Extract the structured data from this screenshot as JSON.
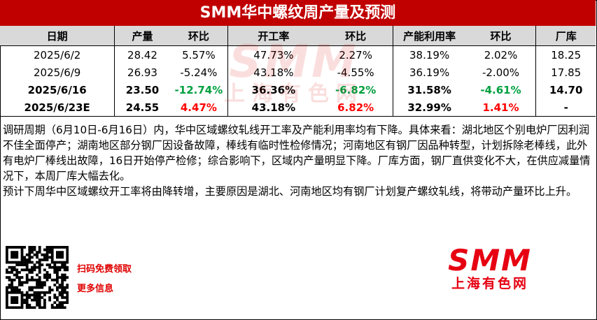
{
  "header": {
    "title": "SMM华中螺纹周产量及预测"
  },
  "table": {
    "headers": [
      "日期",
      "产量",
      "环比",
      "开工率",
      "环比",
      "产能利用率",
      "环比",
      "厂库"
    ],
    "rows": [
      {
        "cells": [
          "2025/6/2",
          "28.42",
          "5.57%",
          "47.73%",
          "2.27%",
          "38.19%",
          "2.02%",
          "18.25"
        ],
        "bold": false
      },
      {
        "cells": [
          "2025/6/9",
          "26.93",
          "-5.24%",
          "43.18%",
          "-4.55%",
          "36.19%",
          "-2.00%",
          "17.85"
        ],
        "bold": false
      },
      {
        "cells": [
          "2025/6/16",
          "23.50",
          "-12.74%",
          "36.36%",
          "-6.82%",
          "31.58%",
          "-4.61%",
          "14.70"
        ],
        "bold": true
      },
      {
        "cells": [
          "2025/6/23E",
          "24.55",
          "4.47%",
          "43.18%",
          "6.82%",
          "32.99%",
          "1.41%",
          "-"
        ],
        "bold": true
      }
    ]
  },
  "body": {
    "paragraphs": [
      "调研周期（6月10日-6月16日）内，华中区域螺纹轧线开工率及产能利用率均有下降。具体来看：湖北地区个别电炉厂因利润不佳全面停产；湖南地区部分钢厂因设备故障，棒线有临时性检修情况；河南地区有钢厂因品种转型，计划拆除老棒线，此外有电炉厂棒线出故障，16日开始停产检修；综合影响下，区域内产量明显下降。厂库方面，钢厂直供变化不大，在供应减量情况下，本周厂库大幅去化。",
      "预计下周华中区域螺纹开工率将由降转增，主要原因是湖北、河南地区均有钢厂计划复产螺纹轧线，将带动产量环比上升。"
    ]
  },
  "footer": {
    "qr_lines": [
      "扫码免费领取",
      "更多信息"
    ],
    "logo": "SMM",
    "logo_sub": "上海有色网"
  },
  "watermark": {
    "logo": "SMM",
    "sub": "上海有色网"
  }
}
